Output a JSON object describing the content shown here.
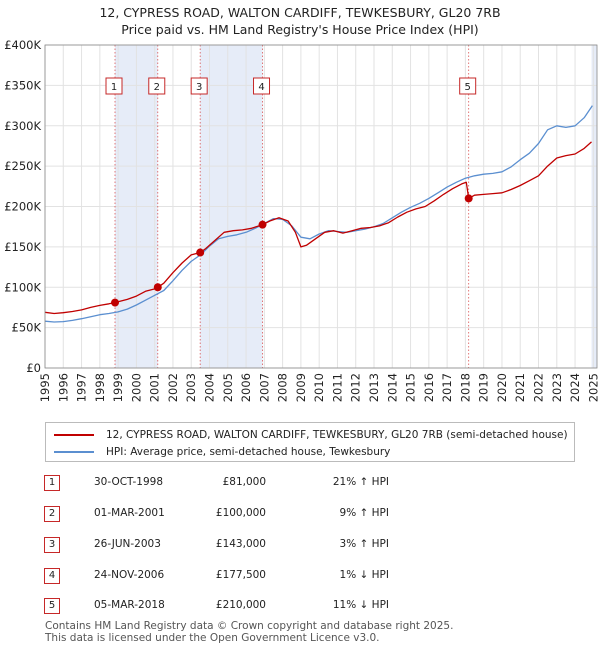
{
  "title_line1": "12, CYPRESS ROAD, WALTON CARDIFF, TEWKESBURY, GL20 7RB",
  "title_line2": "Price paid vs. HM Land Registry's House Price Index (HPI)",
  "colors": {
    "property": "#c00000",
    "hpi": "#5b8fd0",
    "shade": "#dde6f5",
    "marker_border": "#c62828"
  },
  "chart_data": {
    "type": "line",
    "x_range": [
      1995,
      2025.2
    ],
    "y_range": [
      0,
      400000
    ],
    "ytick_values": [
      0,
      50000,
      100000,
      150000,
      200000,
      250000,
      300000,
      350000,
      400000
    ],
    "ytick_labels": [
      "£0",
      "£50K",
      "£100K",
      "£150K",
      "£200K",
      "£250K",
      "£300K",
      "£350K",
      "£400K"
    ],
    "xtick_labels": [
      "1995",
      "1996",
      "1997",
      "1998",
      "1999",
      "2000",
      "2001",
      "2002",
      "2003",
      "2004",
      "2005",
      "2006",
      "2007",
      "2008",
      "2009",
      "2010",
      "2011",
      "2012",
      "2013",
      "2014",
      "2015",
      "2016",
      "2017",
      "2018",
      "2019",
      "2020",
      "2021",
      "2022",
      "2023",
      "2024",
      "2025"
    ],
    "grid": true,
    "series": [
      {
        "name": "12, CYPRESS ROAD, WALTON CARDIFF, TEWKESBURY, GL20 7RB (semi-detached house)",
        "color": "#c00000",
        "points": [
          [
            1995.0,
            69000
          ],
          [
            1995.5,
            67500
          ],
          [
            1996.0,
            68500
          ],
          [
            1996.5,
            70000
          ],
          [
            1997.0,
            72000
          ],
          [
            1997.5,
            75000
          ],
          [
            1998.0,
            77500
          ],
          [
            1998.5,
            79500
          ],
          [
            1998.83,
            81000
          ],
          [
            1999.0,
            82000
          ],
          [
            1999.5,
            85000
          ],
          [
            2000.0,
            89000
          ],
          [
            2000.5,
            95000
          ],
          [
            2001.0,
            98000
          ],
          [
            2001.17,
            100000
          ],
          [
            2001.5,
            105000
          ],
          [
            2002.0,
            118000
          ],
          [
            2002.5,
            130000
          ],
          [
            2003.0,
            140000
          ],
          [
            2003.49,
            143000
          ],
          [
            2003.8,
            148000
          ],
          [
            2004.3,
            158000
          ],
          [
            2004.8,
            168000
          ],
          [
            2005.3,
            170000
          ],
          [
            2005.8,
            171000
          ],
          [
            2006.3,
            173000
          ],
          [
            2006.9,
            177500
          ],
          [
            2007.3,
            182000
          ],
          [
            2007.8,
            186000
          ],
          [
            2008.3,
            182000
          ],
          [
            2008.7,
            168000
          ],
          [
            2009.0,
            150000
          ],
          [
            2009.3,
            152000
          ],
          [
            2009.8,
            160000
          ],
          [
            2010.3,
            168000
          ],
          [
            2010.8,
            170000
          ],
          [
            2011.3,
            167000
          ],
          [
            2011.8,
            170000
          ],
          [
            2012.3,
            173000
          ],
          [
            2012.8,
            174000
          ],
          [
            2013.3,
            176000
          ],
          [
            2013.8,
            180000
          ],
          [
            2014.3,
            187000
          ],
          [
            2014.8,
            193000
          ],
          [
            2015.3,
            197000
          ],
          [
            2015.8,
            200000
          ],
          [
            2016.3,
            207000
          ],
          [
            2016.8,
            215000
          ],
          [
            2017.3,
            222000
          ],
          [
            2017.8,
            228000
          ],
          [
            2018.05,
            230000
          ],
          [
            2018.18,
            210000
          ],
          [
            2018.5,
            214000
          ],
          [
            2019.0,
            215000
          ],
          [
            2019.5,
            216000
          ],
          [
            2020.0,
            217000
          ],
          [
            2020.5,
            221000
          ],
          [
            2021.0,
            226000
          ],
          [
            2021.5,
            232000
          ],
          [
            2022.0,
            238000
          ],
          [
            2022.5,
            250000
          ],
          [
            2023.0,
            260000
          ],
          [
            2023.5,
            263000
          ],
          [
            2024.0,
            265000
          ],
          [
            2024.5,
            272000
          ],
          [
            2024.9,
            280000
          ]
        ]
      },
      {
        "name": "HPI: Average price, semi-detached house, Tewkesbury",
        "color": "#5b8fd0",
        "points": [
          [
            1995.0,
            58000
          ],
          [
            1995.5,
            57000
          ],
          [
            1996.0,
            57500
          ],
          [
            1996.5,
            59000
          ],
          [
            1997.0,
            61000
          ],
          [
            1997.5,
            63500
          ],
          [
            1998.0,
            66000
          ],
          [
            1998.5,
            67500
          ],
          [
            1999.0,
            69500
          ],
          [
            1999.5,
            73000
          ],
          [
            2000.0,
            78000
          ],
          [
            2000.5,
            84000
          ],
          [
            2001.0,
            90000
          ],
          [
            2001.5,
            96000
          ],
          [
            2002.0,
            108000
          ],
          [
            2002.5,
            121000
          ],
          [
            2003.0,
            132000
          ],
          [
            2003.5,
            140000
          ],
          [
            2004.0,
            151000
          ],
          [
            2004.5,
            160000
          ],
          [
            2005.0,
            163000
          ],
          [
            2005.5,
            165000
          ],
          [
            2006.0,
            168000
          ],
          [
            2006.5,
            173000
          ],
          [
            2007.0,
            179000
          ],
          [
            2007.5,
            185000
          ],
          [
            2008.0,
            184000
          ],
          [
            2008.5,
            176000
          ],
          [
            2009.0,
            162000
          ],
          [
            2009.5,
            160000
          ],
          [
            2010.0,
            166000
          ],
          [
            2010.5,
            170000
          ],
          [
            2011.0,
            169000
          ],
          [
            2011.5,
            168000
          ],
          [
            2012.0,
            170000
          ],
          [
            2012.5,
            172000
          ],
          [
            2013.0,
            175000
          ],
          [
            2013.5,
            179000
          ],
          [
            2014.0,
            186000
          ],
          [
            2014.5,
            193000
          ],
          [
            2015.0,
            199000
          ],
          [
            2015.5,
            204000
          ],
          [
            2016.0,
            210000
          ],
          [
            2016.5,
            217000
          ],
          [
            2017.0,
            224000
          ],
          [
            2017.5,
            230000
          ],
          [
            2018.0,
            235000
          ],
          [
            2018.5,
            238000
          ],
          [
            2019.0,
            240000
          ],
          [
            2019.5,
            241000
          ],
          [
            2020.0,
            243000
          ],
          [
            2020.5,
            249000
          ],
          [
            2021.0,
            258000
          ],
          [
            2021.5,
            266000
          ],
          [
            2022.0,
            278000
          ],
          [
            2022.5,
            295000
          ],
          [
            2023.0,
            300000
          ],
          [
            2023.5,
            298000
          ],
          [
            2024.0,
            300000
          ],
          [
            2024.5,
            310000
          ],
          [
            2024.95,
            325000
          ]
        ]
      }
    ],
    "sale_markers": [
      {
        "label": "1",
        "x": 1998.83,
        "y": 81000
      },
      {
        "label": "2",
        "x": 2001.17,
        "y": 100000
      },
      {
        "label": "3",
        "x": 2003.49,
        "y": 143000
      },
      {
        "label": "4",
        "x": 2006.9,
        "y": 177500
      },
      {
        "label": "5",
        "x": 2018.18,
        "y": 210000
      }
    ],
    "shaded_ranges": [
      [
        1998.83,
        2001.17
      ],
      [
        2003.49,
        2006.9
      ],
      [
        2024.9,
        2025.2
      ]
    ]
  },
  "legend": {
    "property_label": "12, CYPRESS ROAD, WALTON CARDIFF, TEWKESBURY, GL20 7RB (semi-detached house)",
    "hpi_label": "HPI: Average price, semi-detached house, Tewkesbury"
  },
  "transactions": [
    {
      "num": "1",
      "date": "30-OCT-1998",
      "price": "£81,000",
      "hpi": "21% ↑ HPI"
    },
    {
      "num": "2",
      "date": "01-MAR-2001",
      "price": "£100,000",
      "hpi": "9% ↑ HPI"
    },
    {
      "num": "3",
      "date": "26-JUN-2003",
      "price": "£143,000",
      "hpi": "3% ↑ HPI"
    },
    {
      "num": "4",
      "date": "24-NOV-2006",
      "price": "£177,500",
      "hpi": "1% ↓ HPI"
    },
    {
      "num": "5",
      "date": "05-MAR-2018",
      "price": "£210,000",
      "hpi": "11% ↓ HPI"
    }
  ],
  "footer_line1": "Contains HM Land Registry data © Crown copyright and database right 2025.",
  "footer_line2": "This data is licensed under the Open Government Licence v3.0."
}
